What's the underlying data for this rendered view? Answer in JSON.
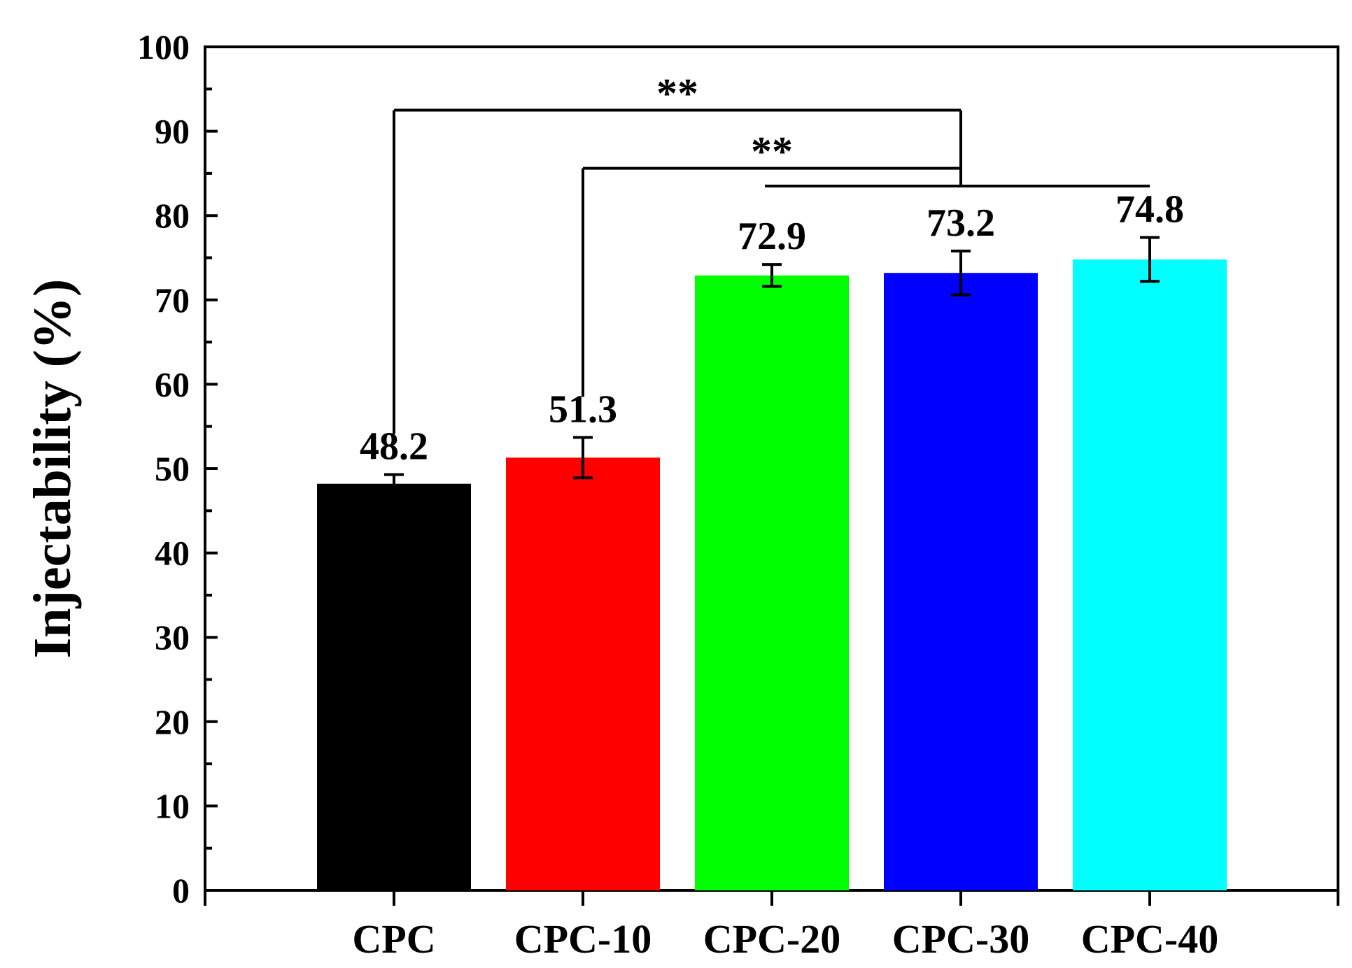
{
  "chart_data": {
    "type": "bar",
    "title": "",
    "xlabel": "",
    "ylabel": "Injectability (%)",
    "ylim": [
      0,
      100
    ],
    "yticks": [
      0,
      10,
      20,
      30,
      40,
      50,
      60,
      70,
      80,
      90,
      100
    ],
    "grid": false,
    "categories": [
      "CPC",
      "CPC-10",
      "CPC-20",
      "CPC-30",
      "CPC-40"
    ],
    "values": [
      48.2,
      51.3,
      72.9,
      73.2,
      74.8
    ],
    "value_labels": [
      "48.2",
      "51.3",
      "72.9",
      "73.2",
      "74.8"
    ],
    "errors": [
      1.1,
      2.4,
      1.3,
      2.6,
      2.6
    ],
    "colors": [
      "#000000",
      "#ff0000",
      "#00ff00",
      "#0000ff",
      "#00ffff"
    ],
    "significance": [
      {
        "label": "**",
        "left_category": 0,
        "right_categories": [
          2,
          4
        ],
        "y": 92.5
      },
      {
        "label": "**",
        "left_category": 1,
        "right_categories": [
          2,
          4
        ],
        "y": 85.6
      }
    ],
    "bracket_line_y": 83.5
  }
}
